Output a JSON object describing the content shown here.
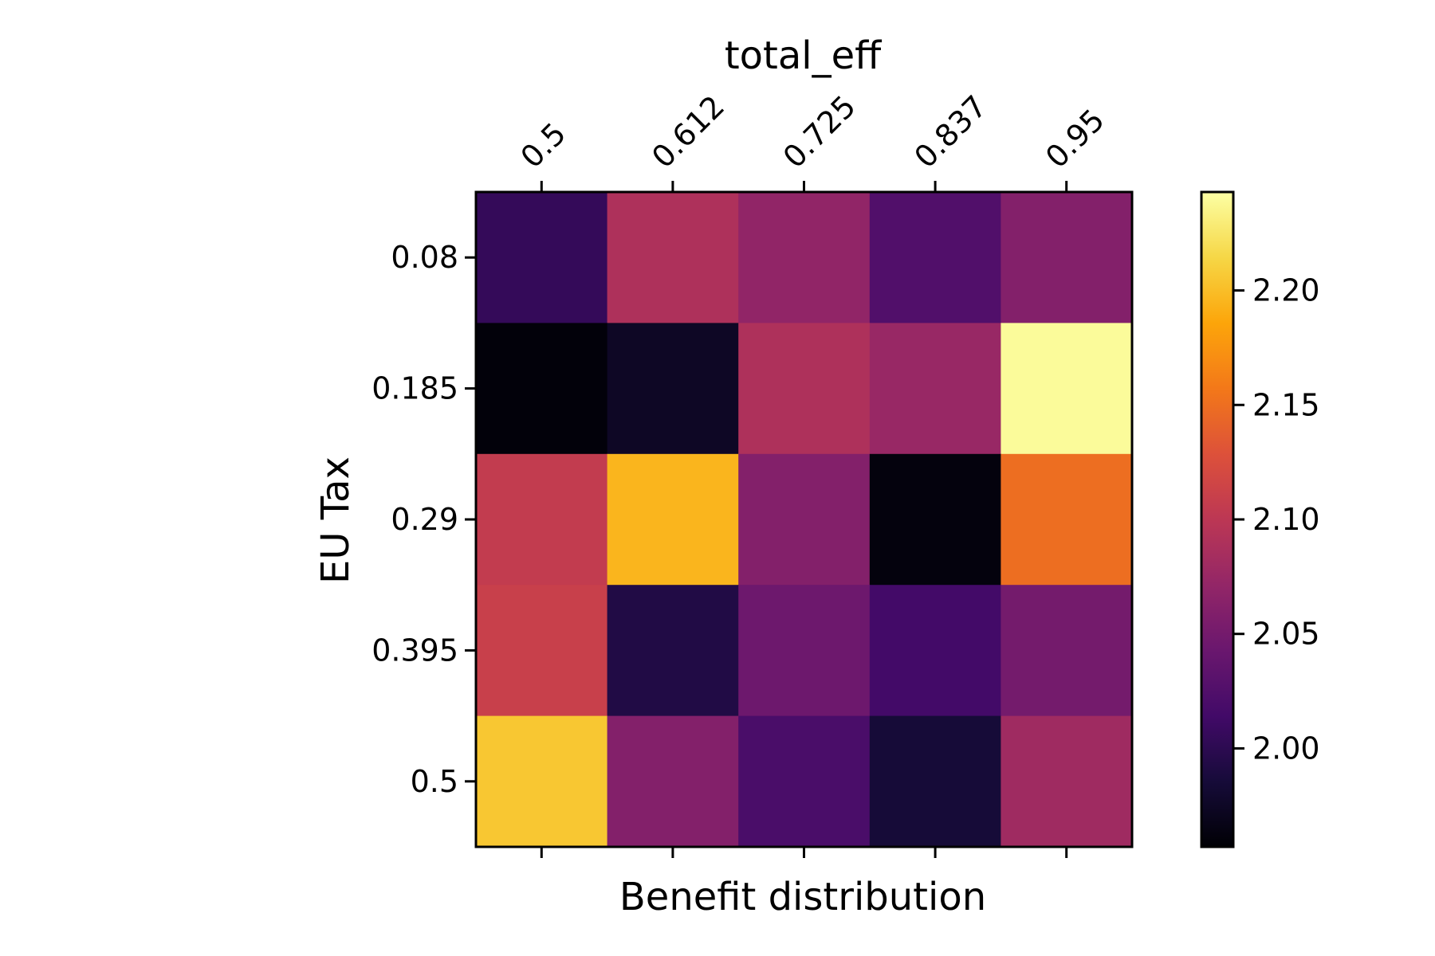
{
  "chart_data": {
    "type": "heatmap",
    "title": "total_eff",
    "xlabel": "Benefit distribution",
    "ylabel": "EU Tax",
    "x": [
      "0.5",
      "0.612",
      "0.725",
      "0.837",
      "0.95"
    ],
    "y": [
      "0.08",
      "0.185",
      "0.29",
      "0.395",
      "0.5"
    ],
    "values": [
      [
        2.005,
        2.09,
        2.07,
        2.025,
        2.06
      ],
      [
        1.96,
        1.975,
        2.09,
        2.075,
        2.24
      ],
      [
        2.105,
        2.195,
        2.06,
        1.962,
        2.15
      ],
      [
        2.11,
        1.993,
        2.045,
        2.015,
        2.05
      ],
      [
        2.205,
        2.06,
        2.02,
        1.985,
        2.08
      ]
    ],
    "colormap": "inferno",
    "vmin": 1.957,
    "vmax": 2.243,
    "colorbar_ticks": [
      "2.00",
      "2.05",
      "2.10",
      "2.15",
      "2.20"
    ],
    "grid": false
  }
}
